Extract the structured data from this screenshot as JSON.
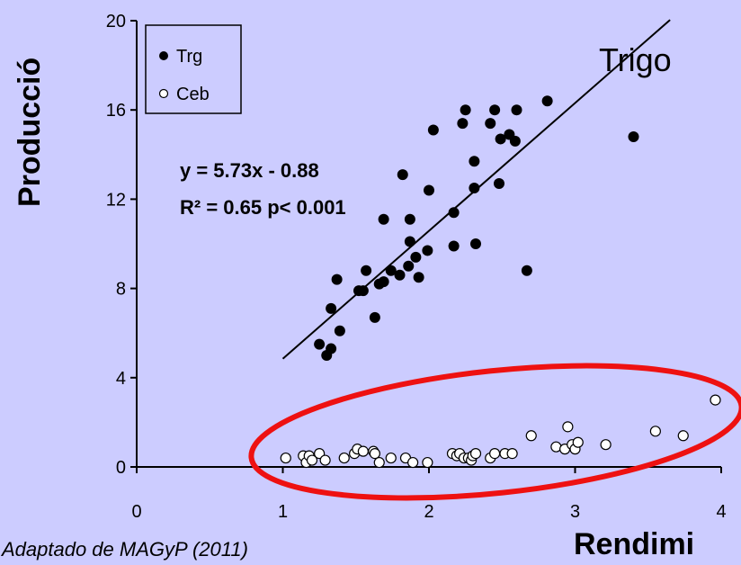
{
  "chart_data": {
    "type": "scatter",
    "ylabel": "Producció",
    "xlabel": "Rendimi",
    "xlim": [
      0,
      4
    ],
    "ylim": [
      0,
      20
    ],
    "x_ticks": [
      "0",
      "1",
      "2",
      "3",
      "4"
    ],
    "y_ticks": [
      "0",
      "4",
      "8",
      "12",
      "16",
      "20"
    ],
    "grid": false,
    "legend_position": "top-left",
    "annotation": "Trigo",
    "equation": "y = 5.73x - 0.88",
    "r2_text": "R² = 0.65 p< 0.001",
    "regression": {
      "slope": 5.73,
      "intercept": -0.88,
      "x_range": [
        1.0,
        3.65
      ]
    },
    "highlight": "ellipse around Ceb series",
    "colors": {
      "background": "#ccccff",
      "trg": "#000000",
      "ceb": "#ffffff",
      "highlight": "#ee1111"
    },
    "series": [
      {
        "name": "Trg",
        "marker": "filled-circle",
        "points": [
          [
            1.25,
            5.5
          ],
          [
            1.3,
            5.0
          ],
          [
            1.33,
            5.3
          ],
          [
            1.33,
            7.1
          ],
          [
            1.37,
            8.4
          ],
          [
            1.39,
            6.1
          ],
          [
            1.52,
            7.9
          ],
          [
            1.55,
            7.9
          ],
          [
            1.57,
            8.8
          ],
          [
            1.63,
            6.7
          ],
          [
            1.66,
            8.2
          ],
          [
            1.69,
            8.3
          ],
          [
            1.69,
            11.1
          ],
          [
            1.74,
            8.8
          ],
          [
            1.8,
            8.6
          ],
          [
            1.82,
            13.1
          ],
          [
            1.86,
            9.0
          ],
          [
            1.87,
            10.1
          ],
          [
            1.87,
            11.1
          ],
          [
            1.91,
            9.4
          ],
          [
            1.93,
            8.5
          ],
          [
            1.99,
            9.7
          ],
          [
            2.0,
            12.4
          ],
          [
            2.03,
            15.1
          ],
          [
            2.17,
            11.4
          ],
          [
            2.17,
            9.9
          ],
          [
            2.23,
            15.4
          ],
          [
            2.25,
            16.0
          ],
          [
            2.31,
            12.5
          ],
          [
            2.31,
            13.7
          ],
          [
            2.32,
            10.0
          ],
          [
            2.42,
            15.4
          ],
          [
            2.45,
            16.0
          ],
          [
            2.48,
            12.7
          ],
          [
            2.49,
            14.7
          ],
          [
            2.55,
            14.9
          ],
          [
            2.59,
            14.6
          ],
          [
            2.6,
            16.0
          ],
          [
            2.67,
            8.8
          ],
          [
            2.81,
            16.4
          ],
          [
            3.4,
            14.8
          ]
        ]
      },
      {
        "name": "Ceb",
        "marker": "open-circle",
        "points": [
          [
            1.02,
            0.4
          ],
          [
            1.14,
            0.5
          ],
          [
            1.16,
            0.2
          ],
          [
            1.18,
            0.5
          ],
          [
            1.2,
            0.3
          ],
          [
            1.25,
            0.6
          ],
          [
            1.29,
            0.3
          ],
          [
            1.42,
            0.4
          ],
          [
            1.49,
            0.6
          ],
          [
            1.51,
            0.8
          ],
          [
            1.55,
            0.7
          ],
          [
            1.62,
            0.7
          ],
          [
            1.63,
            0.6
          ],
          [
            1.66,
            0.2
          ],
          [
            1.74,
            0.4
          ],
          [
            1.84,
            0.4
          ],
          [
            1.89,
            0.2
          ],
          [
            1.99,
            0.2
          ],
          [
            2.16,
            0.6
          ],
          [
            2.19,
            0.5
          ],
          [
            2.21,
            0.6
          ],
          [
            2.24,
            0.4
          ],
          [
            2.27,
            0.4
          ],
          [
            2.29,
            0.3
          ],
          [
            2.3,
            0.5
          ],
          [
            2.32,
            0.6
          ],
          [
            2.42,
            0.4
          ],
          [
            2.45,
            0.6
          ],
          [
            2.52,
            0.6
          ],
          [
            2.57,
            0.6
          ],
          [
            2.7,
            1.4
          ],
          [
            2.87,
            0.9
          ],
          [
            2.93,
            0.8
          ],
          [
            2.95,
            1.8
          ],
          [
            2.98,
            1.0
          ],
          [
            3.0,
            0.8
          ],
          [
            3.02,
            1.1
          ],
          [
            3.21,
            1.0
          ],
          [
            3.55,
            1.6
          ],
          [
            3.74,
            1.4
          ],
          [
            3.96,
            3.0
          ]
        ]
      }
    ]
  },
  "source_note": "Adaptado de MAGyP (2011)"
}
